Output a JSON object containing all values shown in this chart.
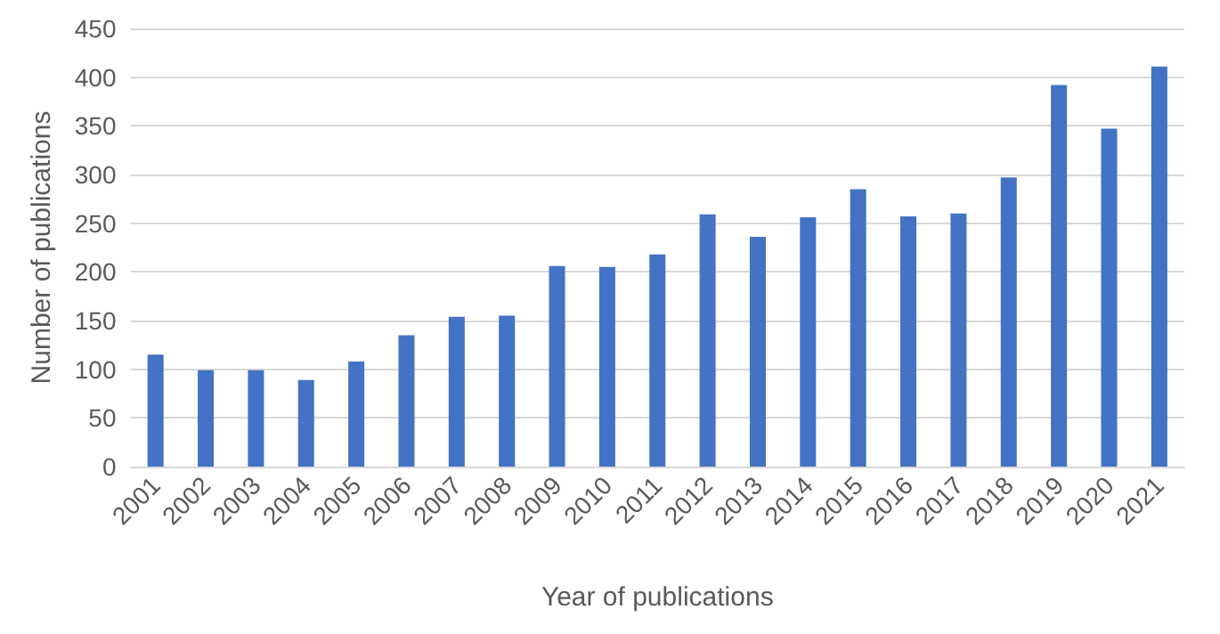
{
  "chart_data": {
    "type": "bar",
    "xlabel": "Year of publications",
    "ylabel": "Number of publications",
    "categories": [
      "2001",
      "2002",
      "2003",
      "2004",
      "2005",
      "2006",
      "2007",
      "2008",
      "2009",
      "2010",
      "2011",
      "2012",
      "2013",
      "2014",
      "2015",
      "2016",
      "2017",
      "2018",
      "2019",
      "2020",
      "2021"
    ],
    "values": [
      115,
      99,
      99,
      89,
      108,
      135,
      154,
      155,
      206,
      205,
      218,
      259,
      236,
      256,
      285,
      257,
      260,
      297,
      392,
      347,
      411
    ],
    "color": "#4472c4",
    "ylim": [
      0,
      450
    ],
    "yticks": [
      0,
      50,
      100,
      150,
      200,
      250,
      300,
      350,
      400,
      450
    ],
    "grid": "y"
  }
}
